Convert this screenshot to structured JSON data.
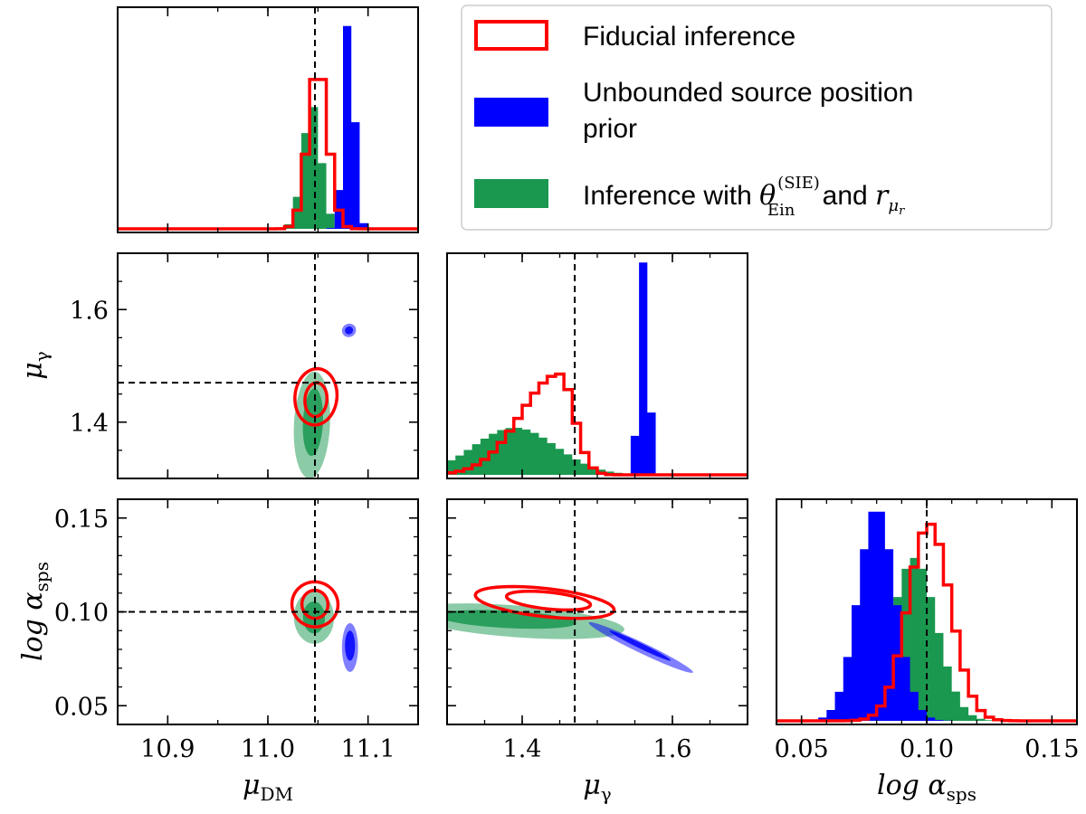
{
  "chart_data": {
    "type": "corner",
    "title": "",
    "truths": {
      "mu_DM": 11.047,
      "mu_gamma": 1.47,
      "log_alpha_sps": 0.1
    },
    "axes": {
      "mu_DM": {
        "label": "μ",
        "label_sub": "DM",
        "range": [
          10.85,
          11.15
        ],
        "ticks": [
          "10.9",
          "11.0",
          "11.1"
        ]
      },
      "mu_gamma": {
        "label": "μ",
        "label_sub": "γ",
        "range": [
          1.3,
          1.7
        ],
        "ticks": [
          "1.4",
          "1.6"
        ]
      },
      "log_alpha_sps": {
        "label": "log α",
        "label_sub": "sps",
        "range": [
          0.04,
          0.16
        ],
        "ticks": [
          "0.05",
          "0.10",
          "0.15"
        ]
      }
    },
    "legend": {
      "position": "top-right",
      "entries": [
        {
          "name": "Fiducial inference",
          "color": "#ff0000",
          "style": "outline"
        },
        {
          "name": "Unbounded source position prior",
          "line1": "Unbounded source position",
          "line2": "prior",
          "color": "#0000ff",
          "style": "filled"
        },
        {
          "name": "Inference with θ_Ein^(SIE) and r_μr",
          "prefix": "Inference with ",
          "theta": "θ",
          "theta_sub": "Ein",
          "theta_sup": "(SIE)",
          "middle": " and ",
          "r": "r",
          "r_sub": "μ",
          "r_subsub": "r",
          "color": "#1a9850",
          "style": "filled"
        }
      ]
    },
    "series": [
      {
        "name": "Fiducial inference",
        "color": "#ff0000",
        "mu_DM": {
          "mean": 11.05,
          "sd": 0.01
        },
        "mu_gamma": {
          "mean": 1.45,
          "sd": 0.03,
          "skew": 0.06
        },
        "log_alpha_sps": {
          "mean": 0.101,
          "sd": 0.0085
        },
        "contours": {
          "mu_DM__mu_gamma": [
            {
              "cx": 11.048,
              "cy": 1.44,
              "rx": 0.011,
              "ry": 0.03,
              "tilt": 0.0025
            },
            {
              "cx": 11.048,
              "cy": 1.445,
              "rx": 0.021,
              "ry": 0.05,
              "tilt": 0.0025
            }
          ],
          "mu_DM__log_alpha_sps": [
            {
              "cx": 11.047,
              "cy": 0.104,
              "rx": 0.013,
              "ry": 0.0075,
              "tilt": -0.00025
            },
            {
              "cx": 11.047,
              "cy": 0.104,
              "rx": 0.023,
              "ry": 0.012,
              "tilt": -0.00025
            }
          ],
          "mu_gamma__log_alpha_sps": [
            {
              "cx": 1.435,
              "cy": 0.106,
              "rx": 0.05,
              "ry": 0.005,
              "tilt": -0.05
            },
            {
              "cx": 1.43,
              "cy": 0.105,
              "rx": 0.082,
              "ry": 0.0085,
              "tilt": -0.05
            }
          ]
        }
      },
      {
        "name": "Unbounded source position prior",
        "color": "#0000ff",
        "mu_DM": {
          "mean": 11.081,
          "sd": 0.0055
        },
        "mu_gamma": {
          "mean": 1.562,
          "sd": 0.0065,
          "skew": 0
        },
        "log_alpha_sps": {
          "mean": 0.08,
          "sd": 0.0075
        },
        "contours": {
          "mu_DM__mu_gamma": [
            {
              "cx": 11.081,
              "cy": 1.563,
              "rx": 0.004,
              "ry": 0.007,
              "tilt": 0.0035
            },
            {
              "cx": 11.081,
              "cy": 1.563,
              "rx": 0.007,
              "ry": 0.012,
              "tilt": 0.0035
            }
          ],
          "mu_DM__log_alpha_sps": [
            {
              "cx": 11.082,
              "cy": 0.082,
              "rx": 0.005,
              "ry": 0.008,
              "tilt": 0
            },
            {
              "cx": 11.082,
              "cy": 0.081,
              "rx": 0.008,
              "ry": 0.013,
              "tilt": 0
            }
          ],
          "mu_gamma__log_alpha_sps": [
            {
              "cx": 1.557,
              "cy": 0.082,
              "rx": 0.008,
              "ry": 0.008,
              "tilt": -0.05
            },
            {
              "cx": 1.558,
              "cy": 0.081,
              "rx": 0.016,
              "ry": 0.0135,
              "tilt": -0.05
            }
          ]
        }
      },
      {
        "name": "Inference with θ_Ein^(SIE) and r_μr",
        "color": "#1a9850",
        "mu_DM": {
          "mean": 11.044,
          "sd": 0.009
        },
        "mu_gamma": {
          "mean": 1.39,
          "sd": 0.055,
          "skew": 0
        },
        "log_alpha_sps": {
          "mean": 0.095,
          "sd": 0.009
        },
        "contours": {
          "mu_DM__mu_gamma": [
            {
              "cx": 11.045,
              "cy": 1.4,
              "rx": 0.01,
              "ry": 0.06,
              "tilt": 0.0025
            },
            {
              "cx": 11.044,
              "cy": 1.395,
              "rx": 0.018,
              "ry": 0.095,
              "tilt": 0.0025
            }
          ],
          "mu_DM__log_alpha_sps": [
            {
              "cx": 11.046,
              "cy": 0.097,
              "rx": 0.011,
              "ry": 0.0085,
              "tilt": -0.00025
            },
            {
              "cx": 11.046,
              "cy": 0.097,
              "rx": 0.02,
              "ry": 0.014,
              "tilt": -0.00025
            }
          ],
          "mu_gamma__log_alpha_sps": [
            {
              "cx": 1.38,
              "cy": 0.096,
              "rx": 0.085,
              "ry": 0.005,
              "tilt": -0.07
            },
            {
              "cx": 1.39,
              "cy": 0.095,
              "rx": 0.13,
              "ry": 0.0095,
              "tilt": -0.07
            }
          ]
        }
      }
    ]
  }
}
